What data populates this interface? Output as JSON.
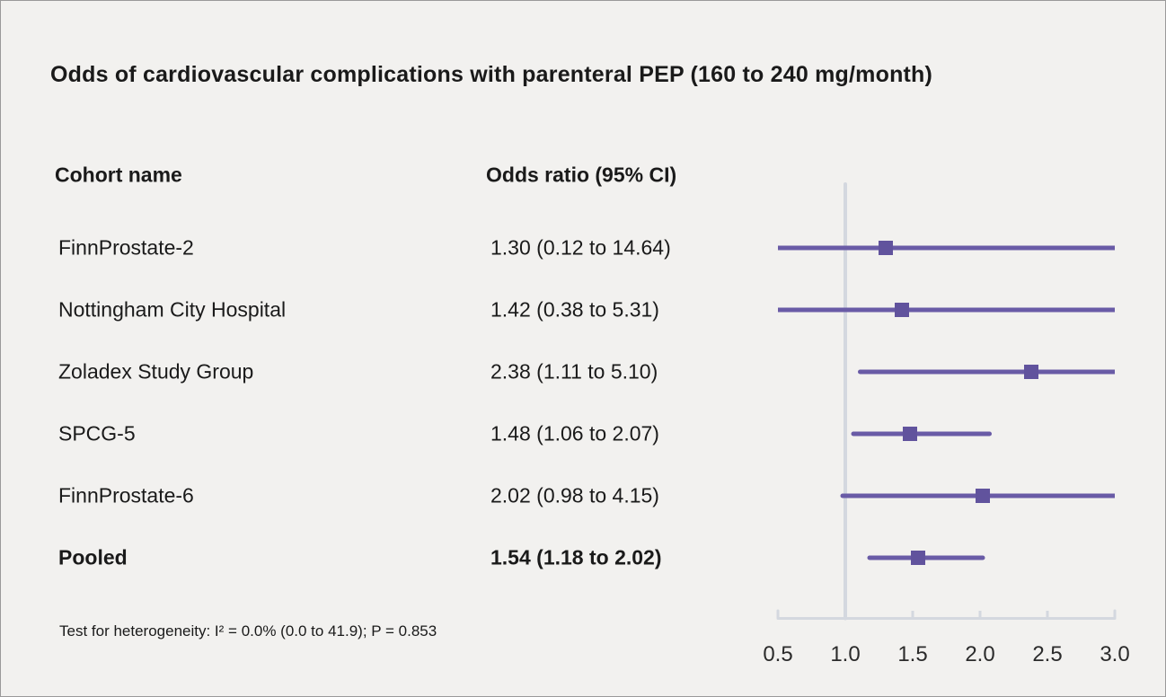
{
  "title": "Odds of cardiovascular complications with parenteral PEP (160 to 240 mg/month)",
  "columns": {
    "cohort": "Cohort name",
    "odds_ratio": "Odds ratio (95% CI)"
  },
  "footnote": "Test for heterogeneity: I² = 0.0% (0.0 to 41.9); P = 0.853",
  "colors": {
    "background": "#f2f1ef",
    "text": "#1a1a1a",
    "ci_line": "#695ba6",
    "marker": "#61539d",
    "axis": "#d4d8df"
  },
  "chart_data": {
    "type": "forest",
    "title": "Odds of cardiovascular complications with parenteral PEP (160 to 240 mg/month)",
    "xlabel": "Odds ratio",
    "xlim": [
      0.5,
      3.0
    ],
    "axis_ticks": [
      "0.5",
      "1.0",
      "1.5",
      "2.0",
      "2.5",
      "3.0"
    ],
    "reference_line": 1.0,
    "grid": false,
    "rows": [
      {
        "cohort": "FinnProstate-2",
        "label": "1.30 (0.12 to 14.64)",
        "estimate": 1.3,
        "ci_low": 0.12,
        "ci_high": 14.64,
        "pooled": false
      },
      {
        "cohort": "Nottingham City Hospital",
        "label": "1.42 (0.38 to 5.31)",
        "estimate": 1.42,
        "ci_low": 0.38,
        "ci_high": 5.31,
        "pooled": false
      },
      {
        "cohort": "Zoladex Study Group",
        "label": "2.38 (1.11 to 5.10)",
        "estimate": 2.38,
        "ci_low": 1.11,
        "ci_high": 5.1,
        "pooled": false
      },
      {
        "cohort": "SPCG-5",
        "label": "1.48 (1.06 to 2.07)",
        "estimate": 1.48,
        "ci_low": 1.06,
        "ci_high": 2.07,
        "pooled": false
      },
      {
        "cohort": "FinnProstate-6",
        "label": "2.02 (0.98 to 4.15)",
        "estimate": 2.02,
        "ci_low": 0.98,
        "ci_high": 4.15,
        "pooled": false
      },
      {
        "cohort": "Pooled",
        "label": "1.54 (1.18 to 2.02)",
        "estimate": 1.54,
        "ci_low": 1.18,
        "ci_high": 2.02,
        "pooled": true
      }
    ],
    "heterogeneity_note": "Test for heterogeneity: I² = 0.0% (0.0 to 41.9); P = 0.853"
  }
}
